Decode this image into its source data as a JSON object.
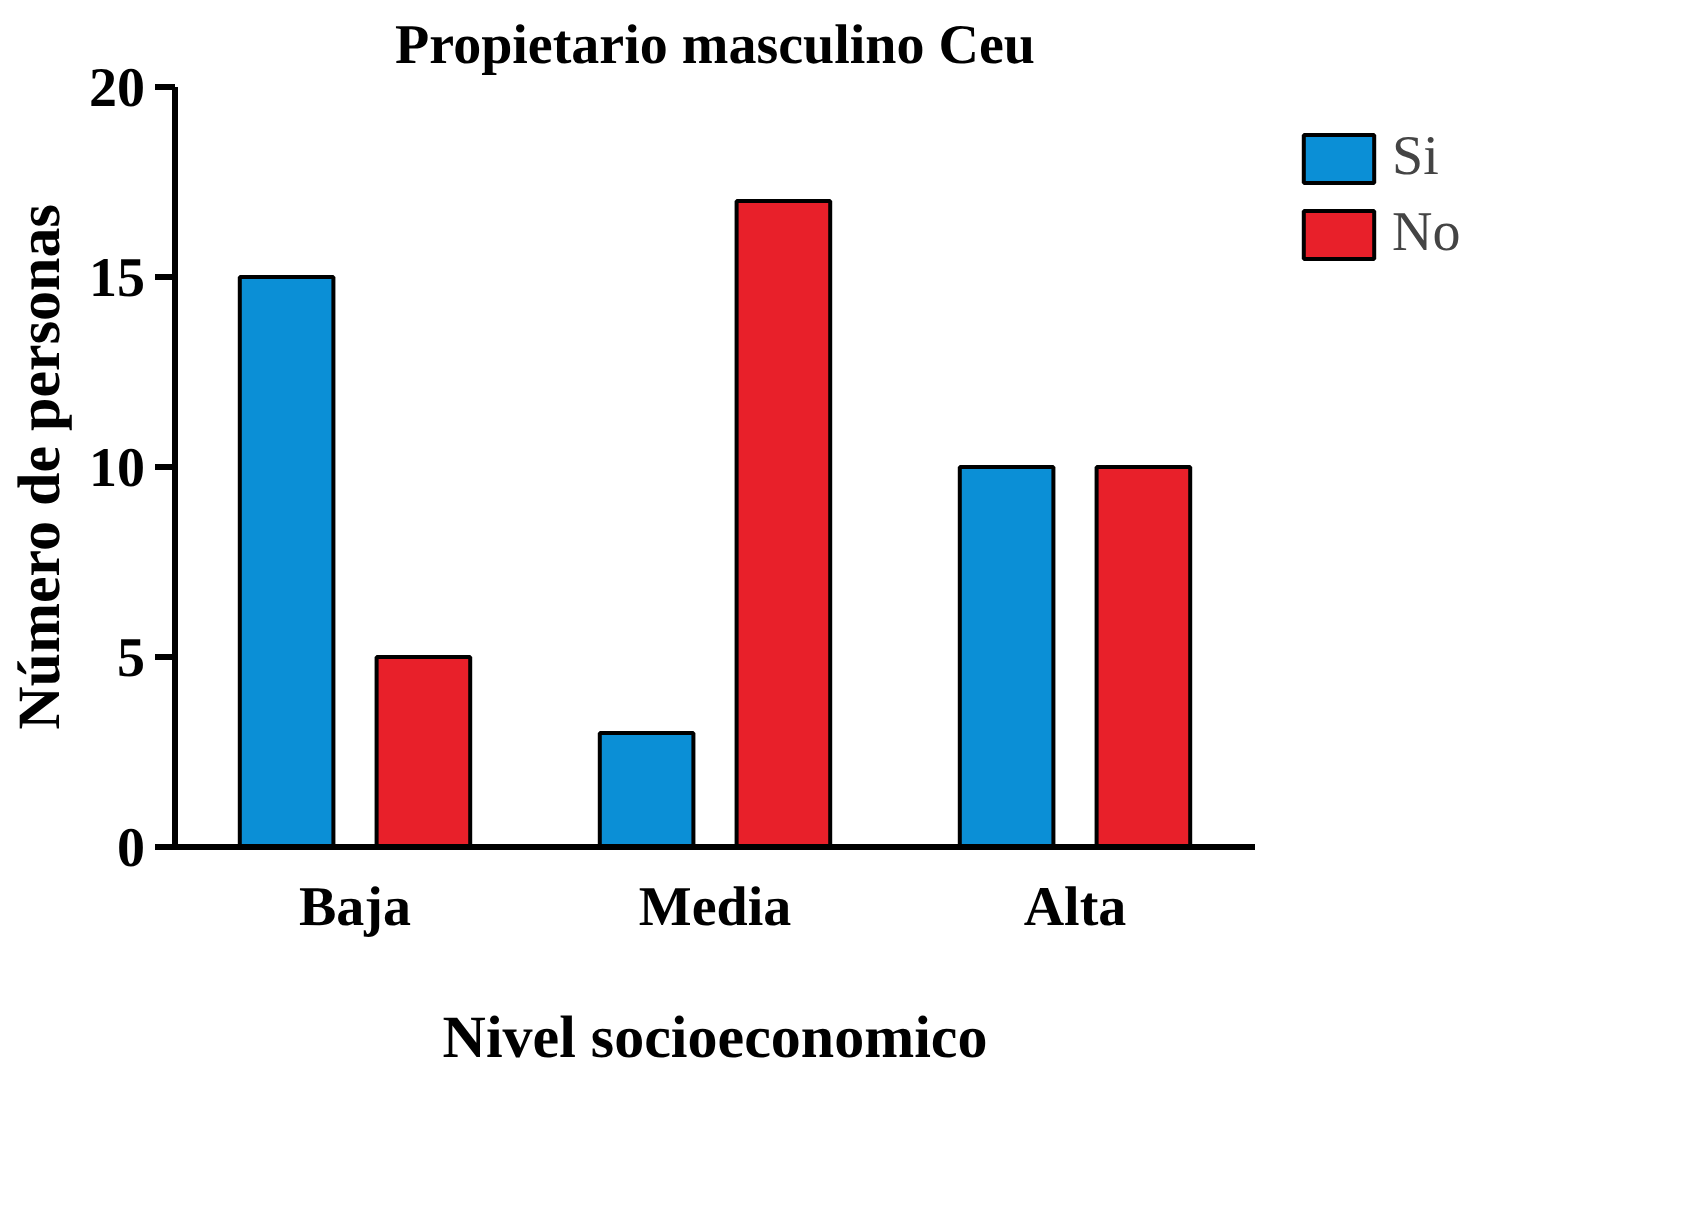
{
  "chart_data": {
    "type": "bar",
    "title": "Propietario masculino Ceu",
    "xlabel": "Nivel socioeconomico",
    "ylabel": "Número de personas",
    "categories": [
      "Baja",
      "Media",
      "Alta"
    ],
    "series": [
      {
        "name": "Si",
        "color": "#0b8fd6",
        "values": [
          15,
          3,
          10
        ]
      },
      {
        "name": "No",
        "color": "#e8202a",
        "values": [
          5,
          17,
          10
        ]
      }
    ],
    "ylim": [
      0,
      20
    ],
    "yticks": [
      0,
      5,
      10,
      15,
      20
    ],
    "grid": false,
    "legend": "top right"
  }
}
